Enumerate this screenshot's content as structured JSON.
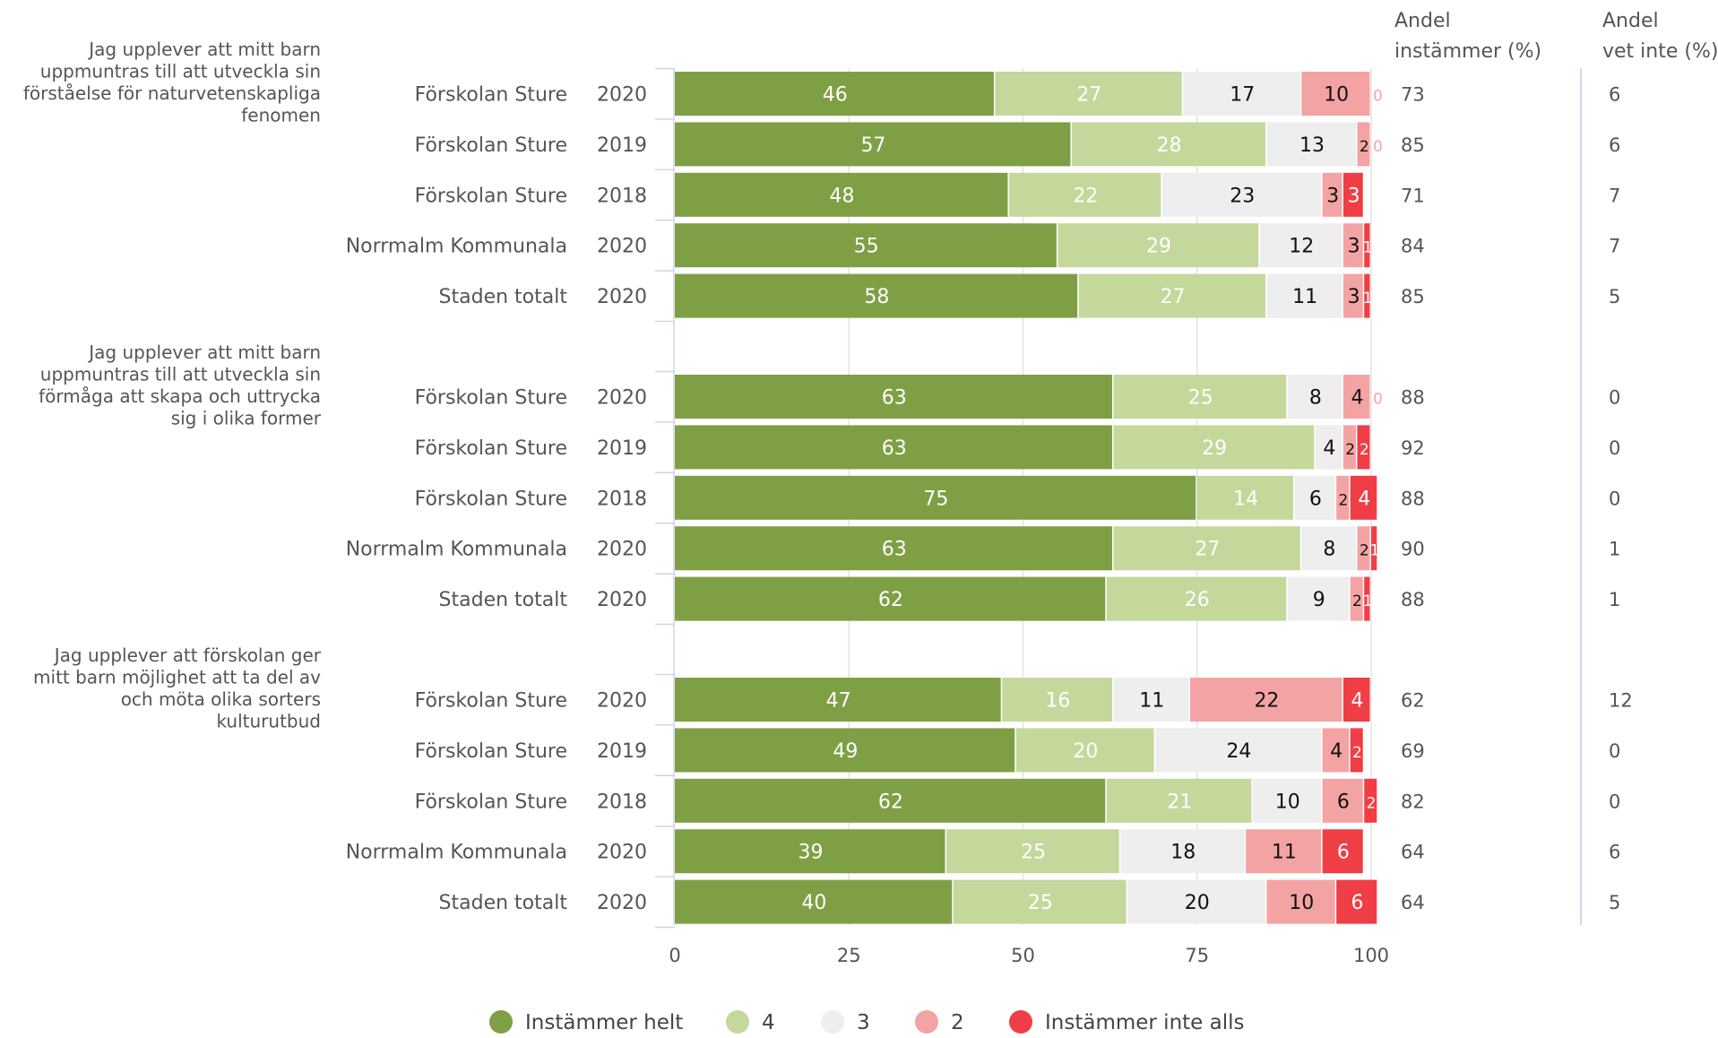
{
  "chart_data": {
    "type": "bar",
    "orientation": "horizontal",
    "stacked": true,
    "xlim": [
      0,
      100
    ],
    "x_ticks": [
      "0",
      "25",
      "50",
      "75",
      "100"
    ],
    "legend_position": "bottom",
    "colors": [
      "#7f9f45",
      "#c5d89c",
      "#eeeeee",
      "#f4a3a4",
      "#ef3e45"
    ],
    "series_names": [
      "Instämmer helt",
      "4",
      "3",
      "2",
      "Instämmer inte alls"
    ],
    "right_columns": {
      "instammer": {
        "label_line1": "Andel",
        "label_line2": "instämmer (%)"
      },
      "vetinte": {
        "label_line1": "Andel",
        "label_line2": "vet inte (%)"
      }
    },
    "groups": [
      {
        "question_lines": [
          "Jag upplever att mitt barn",
          "uppmuntras till att utveckla sin",
          "förståelse för naturvetenskapliga",
          "fenomen"
        ],
        "rows": [
          {
            "label": "Förskolan Sture",
            "year": "2020",
            "values": [
              46,
              27,
              17,
              10,
              0
            ],
            "instammer": 73,
            "vetinte": 6
          },
          {
            "label": "Förskolan Sture",
            "year": "2019",
            "values": [
              57,
              28,
              13,
              2,
              0
            ],
            "instammer": 85,
            "vetinte": 6
          },
          {
            "label": "Förskolan Sture",
            "year": "2018",
            "values": [
              48,
              22,
              23,
              3,
              3
            ],
            "instammer": 71,
            "vetinte": 7
          },
          {
            "label": "Norrmalm Kommunala",
            "year": "2020",
            "values": [
              55,
              29,
              12,
              3,
              1
            ],
            "instammer": 84,
            "vetinte": 7
          },
          {
            "label": "Staden totalt",
            "year": "2020",
            "values": [
              58,
              27,
              11,
              3,
              1
            ],
            "instammer": 85,
            "vetinte": 5
          }
        ]
      },
      {
        "question_lines": [
          "Jag upplever att mitt barn",
          "uppmuntras till att utveckla sin",
          "förmåga att skapa och uttrycka",
          "sig i olika former"
        ],
        "rows": [
          {
            "label": "Förskolan Sture",
            "year": "2020",
            "values": [
              63,
              25,
              8,
              4,
              0
            ],
            "instammer": 88,
            "vetinte": 0
          },
          {
            "label": "Förskolan Sture",
            "year": "2019",
            "values": [
              63,
              29,
              4,
              2,
              2
            ],
            "instammer": 92,
            "vetinte": 0
          },
          {
            "label": "Förskolan Sture",
            "year": "2018",
            "values": [
              75,
              14,
              6,
              2,
              4
            ],
            "instammer": 88,
            "vetinte": 0
          },
          {
            "label": "Norrmalm Kommunala",
            "year": "2020",
            "values": [
              63,
              27,
              8,
              2,
              1
            ],
            "instammer": 90,
            "vetinte": 1
          },
          {
            "label": "Staden totalt",
            "year": "2020",
            "values": [
              62,
              26,
              9,
              2,
              1
            ],
            "instammer": 88,
            "vetinte": 1
          }
        ]
      },
      {
        "question_lines": [
          "Jag upplever att förskolan ger",
          "mitt barn möjlighet att ta del av",
          "och möta olika sorters",
          "kulturutbud"
        ],
        "rows": [
          {
            "label": "Förskolan Sture",
            "year": "2020",
            "values": [
              47,
              16,
              11,
              22,
              4
            ],
            "instammer": 62,
            "vetinte": 12
          },
          {
            "label": "Förskolan Sture",
            "year": "2019",
            "values": [
              49,
              20,
              24,
              4,
              2
            ],
            "instammer": 69,
            "vetinte": 0
          },
          {
            "label": "Förskolan Sture",
            "year": "2018",
            "values": [
              62,
              21,
              10,
              6,
              2
            ],
            "instammer": 82,
            "vetinte": 0
          },
          {
            "label": "Norrmalm Kommunala",
            "year": "2020",
            "values": [
              39,
              25,
              18,
              11,
              6
            ],
            "instammer": 64,
            "vetinte": 6
          },
          {
            "label": "Staden totalt",
            "year": "2020",
            "values": [
              40,
              25,
              20,
              10,
              6
            ],
            "instammer": 64,
            "vetinte": 5
          }
        ]
      }
    ]
  }
}
